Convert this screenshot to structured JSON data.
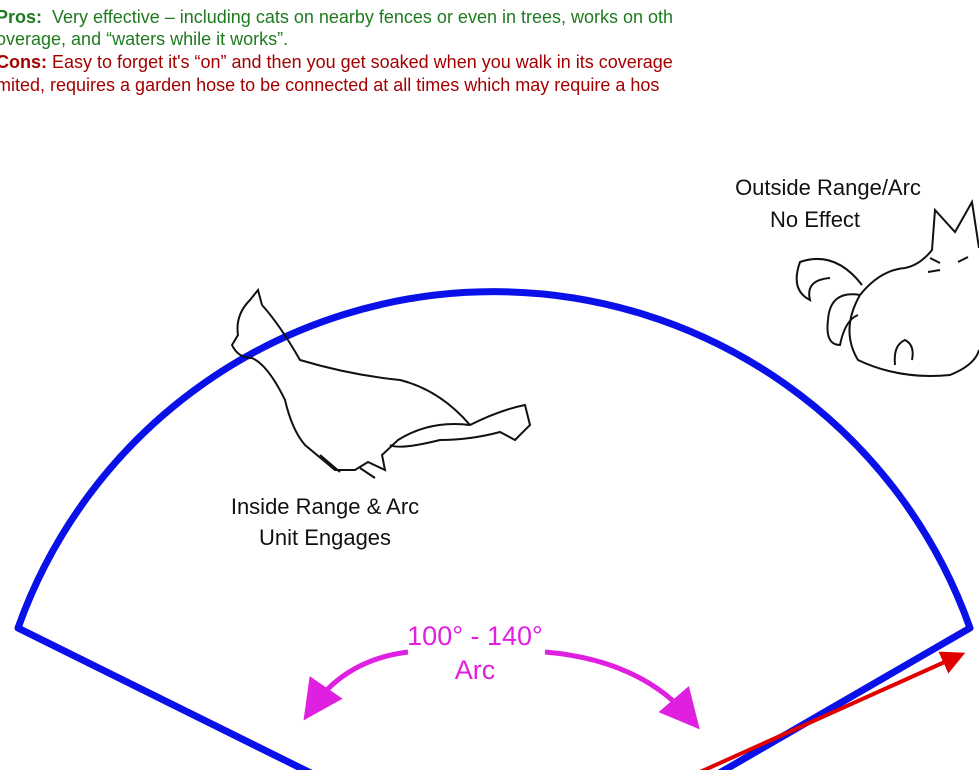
{
  "text": {
    "pros": {
      "label": "Pros:",
      "lines": [
        "Very effective – including cats on nearby fences or even in trees, works on oth",
        "overage, and “waters while it works”."
      ]
    },
    "cons": {
      "label": "Cons:",
      "lines": [
        "Easy to forget it's “on” and then you get soaked when you walk in its coverage",
        "mited, requires a garden hose to be connected at all times which may require a hos"
      ]
    }
  },
  "diagram": {
    "outside": {
      "lines": [
        "Outside Range/Arc",
        "No Effect"
      ]
    },
    "inside": {
      "lines": [
        "Inside Range & Arc",
        "Unit Engages"
      ]
    },
    "arc": {
      "lines": [
        "100° - 140°",
        "Arc"
      ]
    }
  }
}
